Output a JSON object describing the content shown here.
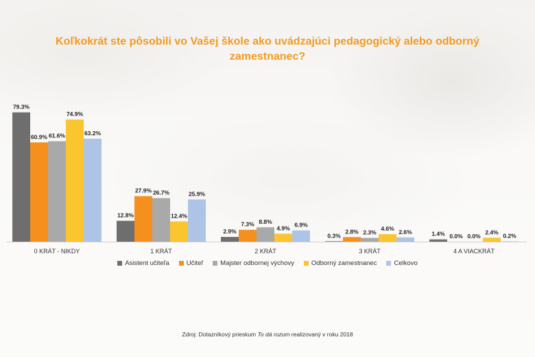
{
  "title": "Koľkokrát ste pôsobili vo Vašej škole ako uvádzajúci pedagogický alebo odborný zamestnanec?",
  "source": {
    "prefix": "Zdroj: Dotazníkový prieskum ",
    "italic": "To dá rozum",
    "suffix": " realizovaný v roku 2018"
  },
  "chart_data": {
    "type": "bar",
    "categories": [
      "0 KRÁT - NIKDY",
      "1 KRÁT",
      "2 KRÁT",
      "3 KRÁT",
      "4 A VIACKRÁT"
    ],
    "series": [
      {
        "name": "Asistent učiteľa",
        "color": "#6e6e6e",
        "values": [
          79.3,
          12.8,
          2.9,
          0.3,
          1.4
        ]
      },
      {
        "name": "Učiteľ",
        "color": "#f5901e",
        "values": [
          60.9,
          27.9,
          7.3,
          2.8,
          0.0
        ]
      },
      {
        "name": "Majster odbornej výchovy",
        "color": "#a9a9a9",
        "values": [
          61.6,
          26.7,
          8.8,
          2.3,
          0.0
        ]
      },
      {
        "name": "Odborný zamestnanec",
        "color": "#fbc52f",
        "values": [
          74.9,
          12.4,
          4.9,
          4.6,
          2.4
        ]
      },
      {
        "name": "Celkovo",
        "color": "#aec4e6",
        "values": [
          63.2,
          25.9,
          6.9,
          2.6,
          0.2
        ]
      }
    ],
    "value_suffix": "%",
    "ylim": [
      0,
      80
    ],
    "legend_position": "bottom",
    "grid": false
  }
}
